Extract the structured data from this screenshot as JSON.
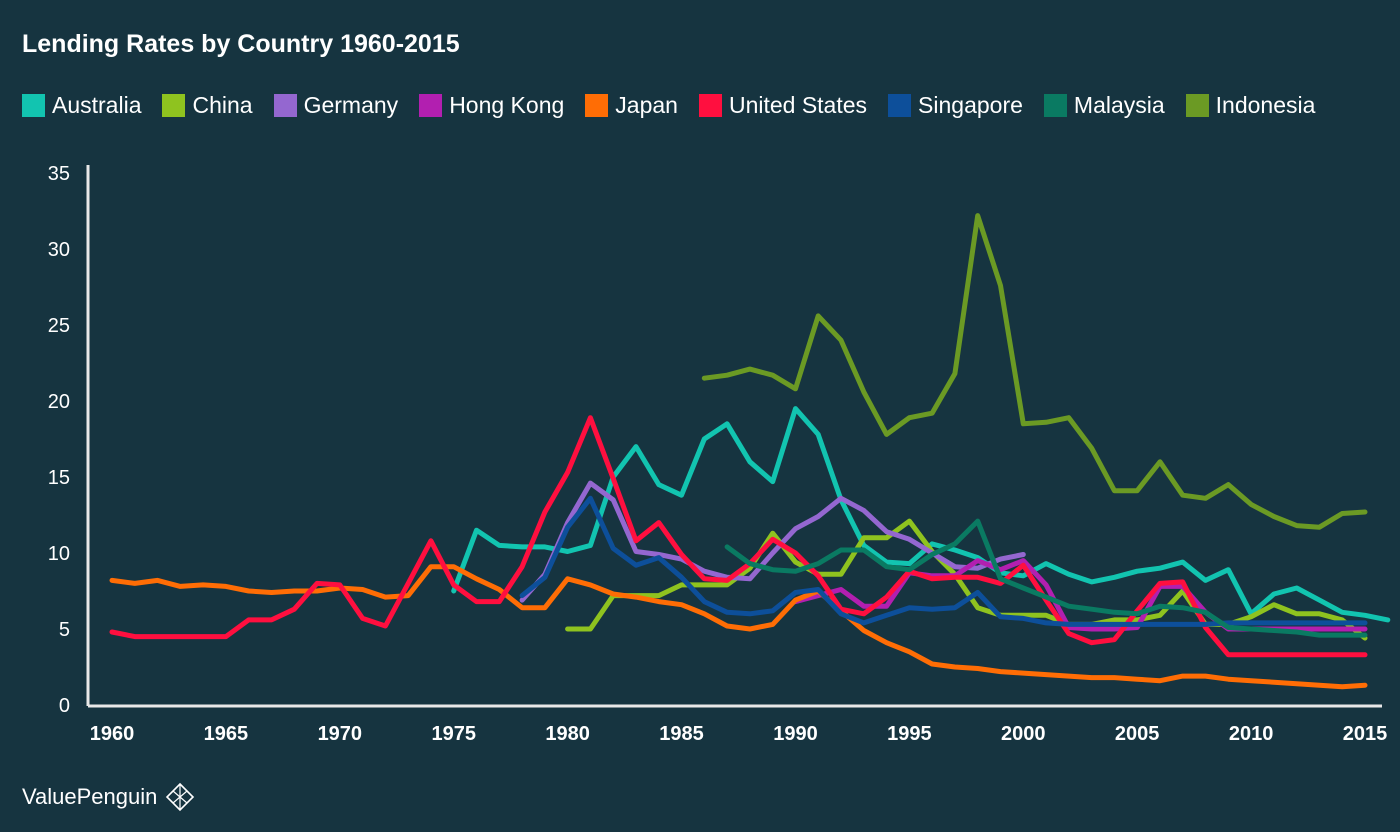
{
  "chart_data": {
    "type": "line",
    "title": "Lending Rates by Country 1960-2015",
    "xlabel": "",
    "ylabel": "",
    "xlim": [
      1960,
      2015
    ],
    "ylim": [
      0,
      35
    ],
    "x_ticks": [
      1960,
      1965,
      1970,
      1975,
      1980,
      1985,
      1990,
      1995,
      2000,
      2005,
      2010,
      2015
    ],
    "y_ticks": [
      0,
      5,
      10,
      15,
      20,
      25,
      30,
      35
    ],
    "grid": false,
    "legend_position": "top",
    "series": [
      {
        "name": "Australia",
        "color": "#12c4b0",
        "start": 1975,
        "values": [
          7.5,
          11.5,
          10.5,
          10.4,
          10.4,
          10.1,
          10.5,
          15.0,
          17.0,
          14.5,
          13.8,
          17.5,
          18.5,
          16.0,
          14.7,
          19.5,
          17.8,
          13.5,
          10.5,
          9.4,
          9.3,
          10.6,
          10.2,
          9.7,
          8.7,
          8.5,
          9.3,
          8.6,
          8.1,
          8.4,
          8.8,
          9.0,
          9.4,
          8.2,
          8.9,
          6.0,
          7.3,
          7.7,
          6.9,
          6.1,
          5.9,
          5.6
        ]
      },
      {
        "name": "China",
        "color": "#8fc31f",
        "start": 1980,
        "values": [
          5.0,
          5.0,
          7.2,
          7.2,
          7.2,
          7.9,
          7.9,
          7.9,
          9.0,
          11.3,
          9.4,
          8.6,
          8.6,
          11.0,
          11.0,
          12.1,
          10.1,
          8.6,
          6.4,
          5.9,
          5.9,
          5.9,
          5.3,
          5.3,
          5.6,
          5.6,
          5.9,
          7.5,
          5.3,
          5.3,
          5.8,
          6.6,
          6.0,
          6.0,
          5.6,
          4.4
        ]
      },
      {
        "name": "Germany",
        "color": "#9467d0",
        "start": 1978,
        "values": [
          6.9,
          8.6,
          12.0,
          14.6,
          13.5,
          10.1,
          9.9,
          9.6,
          8.8,
          8.4,
          8.3,
          10.0,
          11.6,
          12.4,
          13.6,
          12.8,
          11.4,
          10.9,
          10.0,
          9.1,
          9.0,
          9.6,
          9.9
        ]
      },
      {
        "name": "Hong Kong",
        "color": "#b21fb0",
        "start": 1990,
        "values": [
          6.8,
          7.2,
          7.6,
          6.5,
          6.5,
          8.7,
          8.5,
          8.5,
          9.5,
          8.9,
          9.5,
          7.9,
          5.1,
          5.0,
          5.0,
          5.1,
          7.8,
          7.8,
          6.1,
          5.0,
          5.0,
          5.0,
          5.0,
          5.0,
          5.0,
          5.0
        ]
      },
      {
        "name": "Japan",
        "color": "#ff6d05",
        "start": 1960,
        "values": [
          8.2,
          8.0,
          8.2,
          7.8,
          7.9,
          7.8,
          7.5,
          7.4,
          7.5,
          7.5,
          7.7,
          7.6,
          7.1,
          7.2,
          9.1,
          9.1,
          8.3,
          7.6,
          6.4,
          6.4,
          8.3,
          7.9,
          7.3,
          7.1,
          6.8,
          6.6,
          6.0,
          5.2,
          5.0,
          5.3,
          6.9,
          7.5,
          6.2,
          4.9,
          4.1,
          3.5,
          2.7,
          2.5,
          2.4,
          2.2,
          2.1,
          2.0,
          1.9,
          1.8,
          1.8,
          1.7,
          1.6,
          1.9,
          1.9,
          1.7,
          1.6,
          1.5,
          1.4,
          1.3,
          1.2,
          1.3
        ]
      },
      {
        "name": "United States",
        "color": "#ff0f3f",
        "start": 1960,
        "values": [
          4.8,
          4.5,
          4.5,
          4.5,
          4.5,
          4.5,
          5.6,
          5.6,
          6.3,
          8.0,
          7.9,
          5.7,
          5.2,
          8.0,
          10.8,
          7.9,
          6.8,
          6.8,
          9.1,
          12.7,
          15.3,
          18.9,
          14.9,
          10.8,
          12.0,
          9.9,
          8.3,
          8.2,
          9.3,
          10.9,
          10.0,
          8.5,
          6.3,
          6.0,
          7.1,
          8.8,
          8.3,
          8.4,
          8.4,
          8.0,
          9.2,
          6.9,
          4.7,
          4.1,
          4.3,
          6.2,
          8.0,
          8.1,
          5.1,
          3.3,
          3.3,
          3.3,
          3.3,
          3.3,
          3.3,
          3.3
        ]
      },
      {
        "name": "Singapore",
        "color": "#0d4f9a",
        "start": 1978,
        "values": [
          7.2,
          8.4,
          11.7,
          13.6,
          10.3,
          9.2,
          9.7,
          8.4,
          6.8,
          6.1,
          6.0,
          6.2,
          7.4,
          7.6,
          6.0,
          5.4,
          5.9,
          6.4,
          6.3,
          6.4,
          7.4,
          5.8,
          5.7,
          5.4,
          5.3,
          5.3,
          5.3,
          5.3,
          5.3,
          5.3,
          5.3,
          5.4,
          5.4,
          5.4,
          5.4,
          5.4,
          5.4,
          5.4
        ]
      },
      {
        "name": "Malaysia",
        "color": "#0a7a62",
        "start": 1987,
        "values": [
          10.4,
          9.3,
          8.9,
          8.8,
          9.3,
          10.2,
          10.2,
          9.1,
          8.9,
          9.9,
          10.6,
          12.1,
          8.3,
          7.7,
          7.1,
          6.5,
          6.3,
          6.1,
          6.0,
          6.5,
          6.4,
          6.1,
          5.1,
          5.0,
          4.9,
          4.8,
          4.6,
          4.6,
          4.6
        ]
      },
      {
        "name": "Indonesia",
        "color": "#6b9a24",
        "start": 1986,
        "values": [
          21.5,
          21.7,
          22.1,
          21.7,
          20.8,
          25.6,
          24.0,
          20.6,
          17.8,
          18.9,
          19.2,
          21.8,
          32.2,
          27.6,
          18.5,
          18.6,
          18.9,
          16.9,
          14.1,
          14.1,
          16.0,
          13.8,
          13.6,
          14.5,
          13.2,
          12.4,
          11.8,
          11.7,
          12.6,
          12.7
        ]
      }
    ]
  },
  "brand": {
    "name": "ValuePenguin"
  }
}
